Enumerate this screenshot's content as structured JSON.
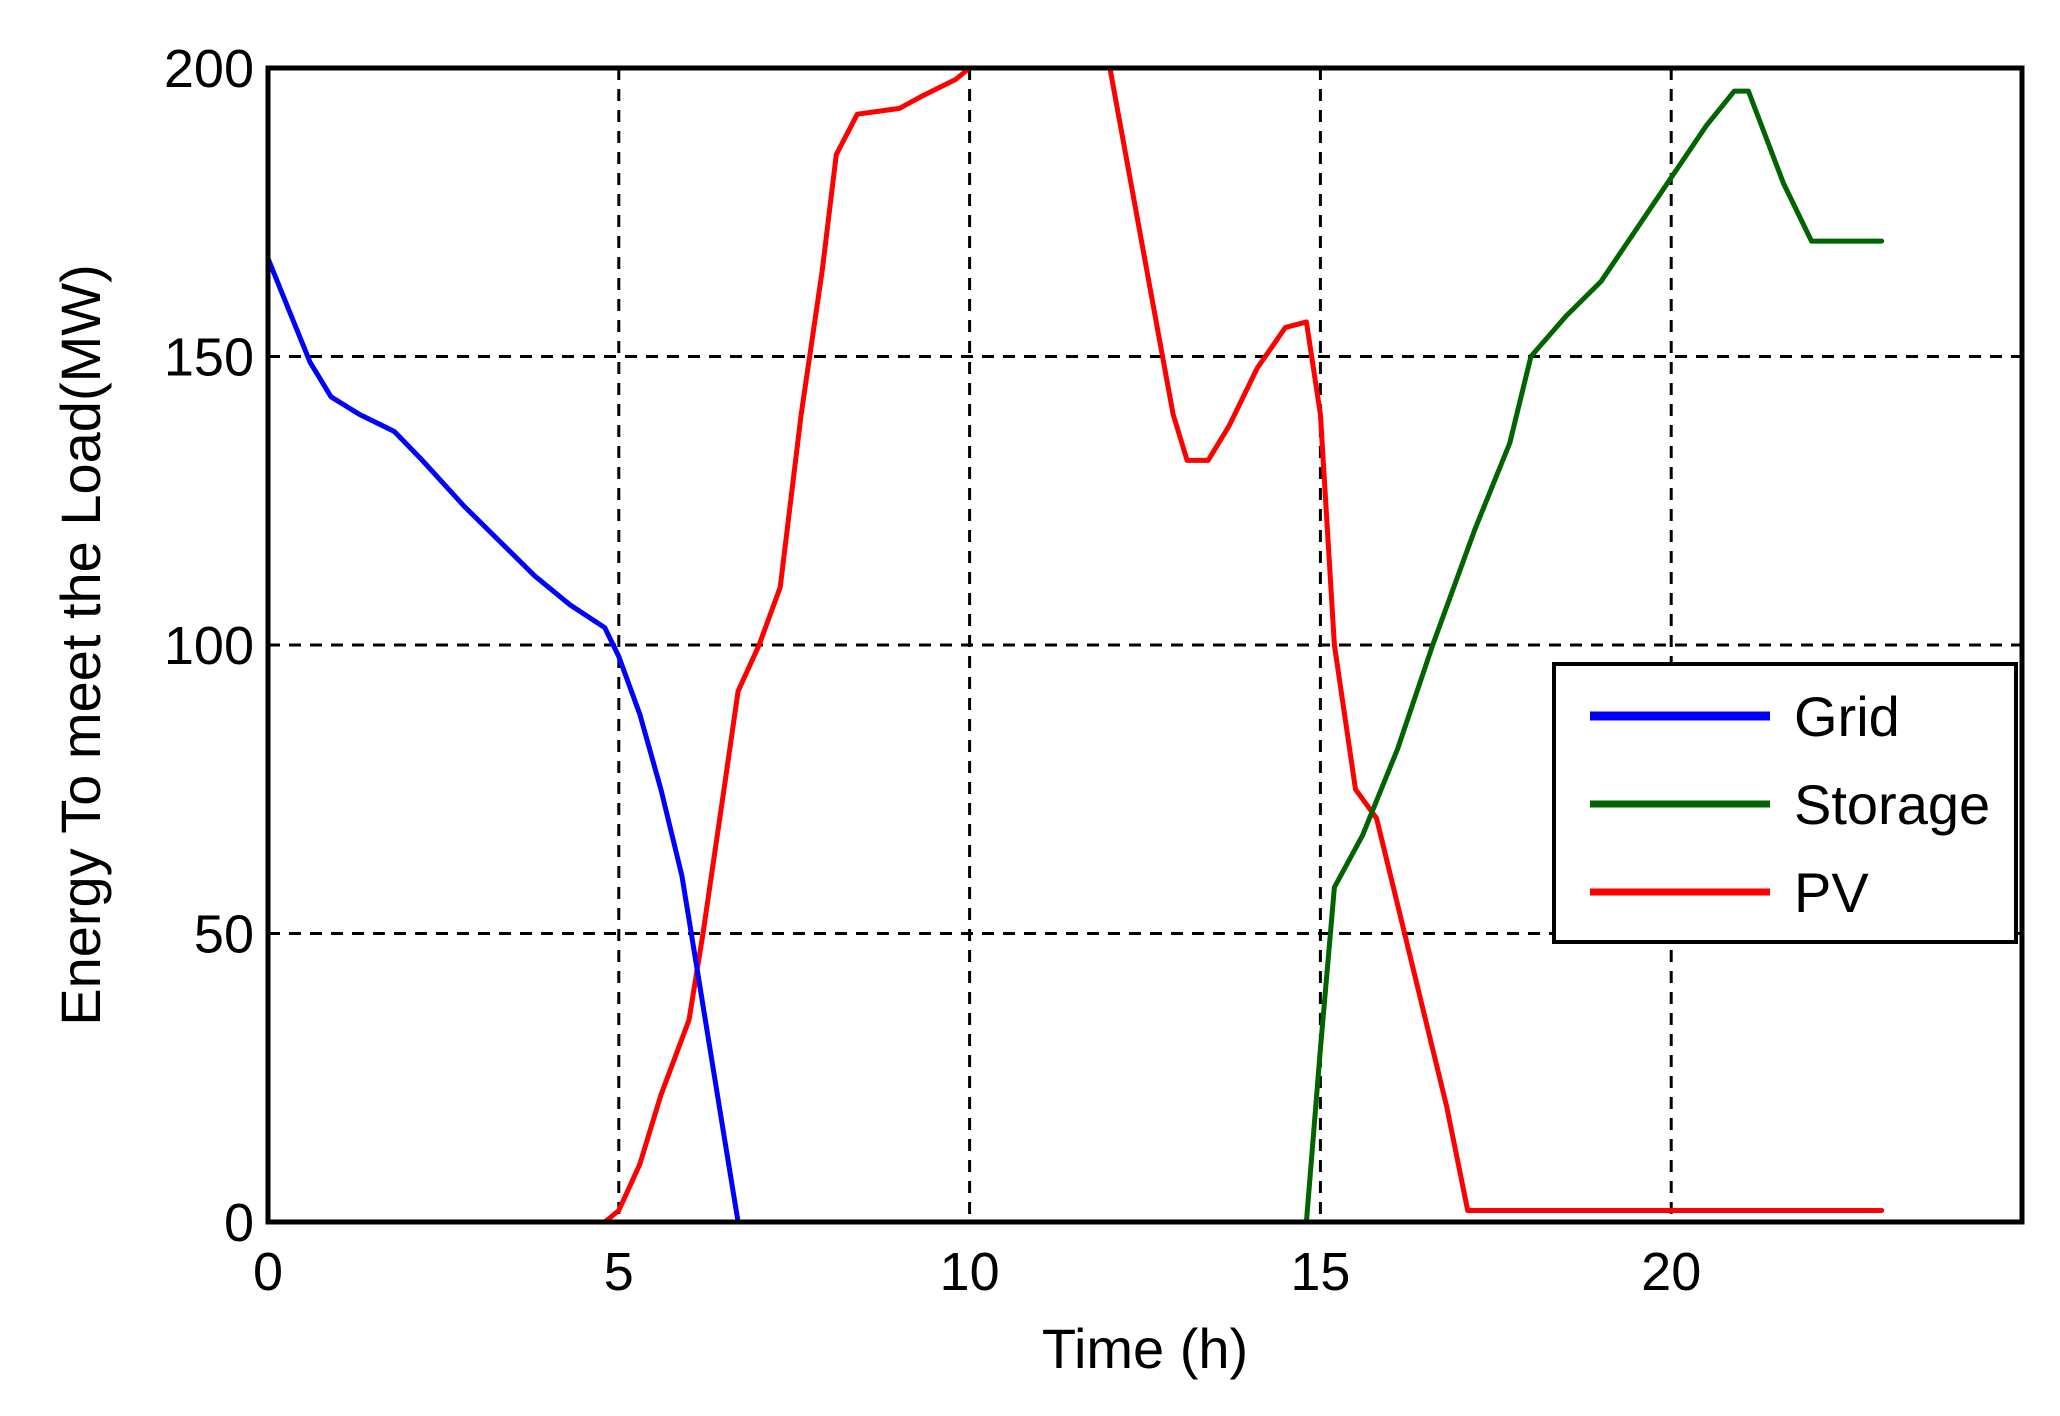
{
  "chart_data": {
    "type": "line",
    "title": "",
    "xlabel": "Time (h)",
    "ylabel": "Energy To meet the Load(MW)",
    "xlim": [
      0,
      25
    ],
    "ylim": [
      0,
      200
    ],
    "xticks": [
      "0",
      "5",
      "10",
      "15",
      "20"
    ],
    "yticks": [
      "0",
      "50",
      "100",
      "150",
      "200"
    ],
    "grid": true,
    "legend_position": "right",
    "series": [
      {
        "name": "Grid",
        "color": "#0000ff",
        "x": [
          0,
          0.3,
          0.6,
          0.9,
          1.3,
          1.8,
          2.2,
          2.8,
          3.3,
          3.8,
          4.3,
          4.8,
          5.0,
          5.3,
          5.6,
          5.9,
          6.1,
          6.3,
          6.5,
          6.7,
          15.0,
          17.0,
          18.0
        ],
        "y": [
          167,
          158,
          149,
          143,
          140,
          137,
          132,
          124,
          118,
          112,
          107,
          103,
          98,
          88,
          75,
          60,
          45,
          30,
          15,
          0,
          0,
          0,
          0
        ]
      },
      {
        "name": "Storage",
        "color": "#006400",
        "x": [
          0,
          14.8,
          15.0,
          15.2,
          15.6,
          16.1,
          16.6,
          17.2,
          17.7,
          18.0,
          18.5,
          19.0,
          19.5,
          20.0,
          20.5,
          20.9,
          21.1,
          21.6,
          22.0,
          22.3,
          23.0
        ],
        "y": [
          0,
          0,
          30,
          58,
          67,
          82,
          100,
          120,
          135,
          150,
          157,
          163,
          172,
          181,
          190,
          196,
          196,
          180,
          170,
          170,
          170
        ]
      },
      {
        "name": "PV",
        "color": "#ff0000",
        "x": [
          0,
          4.8,
          5.0,
          5.3,
          5.6,
          6.0,
          6.2,
          6.5,
          6.7,
          7.0,
          7.3,
          7.6,
          7.9,
          8.1,
          8.4,
          9.0,
          9.3,
          9.8,
          10.0,
          11.0,
          12.0,
          12.3,
          12.6,
          12.9,
          13.1,
          13.4,
          13.7,
          14.1,
          14.5,
          14.8,
          15.0,
          15.2,
          15.5,
          15.8,
          16.1,
          16.4,
          16.8,
          17.1,
          17.4,
          18.0,
          23.0
        ],
        "y": [
          0,
          0,
          2,
          10,
          22,
          35,
          50,
          75,
          92,
          100,
          110,
          140,
          165,
          185,
          192,
          193,
          195,
          198,
          200,
          200,
          200,
          180,
          160,
          140,
          132,
          132,
          138,
          148,
          155,
          156,
          140,
          100,
          75,
          70,
          55,
          40,
          20,
          2,
          2,
          2,
          2
        ]
      }
    ]
  }
}
